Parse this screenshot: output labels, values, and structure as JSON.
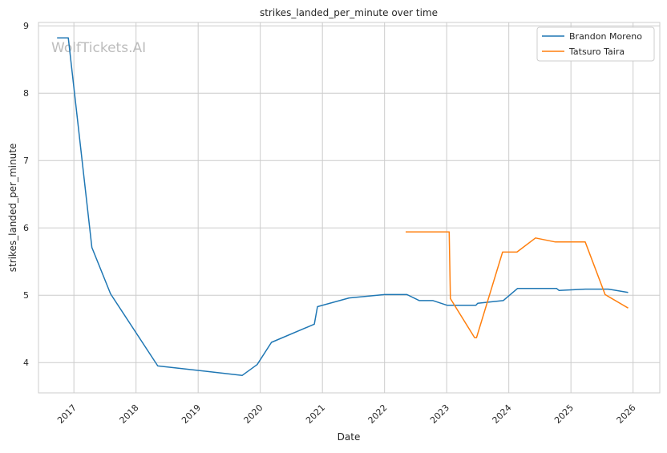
{
  "chart_data": {
    "type": "line",
    "title": "strikes_landed_per_minute over time",
    "xlabel": "Date",
    "ylabel": "strikes_landed_per_minute",
    "watermark": "WolfTickets.AI",
    "xlim": [
      2016.43,
      2026.43
    ],
    "ylim": [
      3.55,
      9.05
    ],
    "x_ticks": [
      2017,
      2018,
      2019,
      2020,
      2021,
      2022,
      2023,
      2024,
      2025,
      2026
    ],
    "x_tick_labels": [
      "2017",
      "2018",
      "2019",
      "2020",
      "2021",
      "2022",
      "2023",
      "2024",
      "2025",
      "2026"
    ],
    "y_ticks": [
      4,
      5,
      6,
      7,
      8,
      9
    ],
    "y_tick_labels": [
      "4",
      "5",
      "6",
      "7",
      "8",
      "9"
    ],
    "grid": true,
    "legend_position": "top-right",
    "series": [
      {
        "name": "Brandon Moreno",
        "color": "#1f77b4",
        "x": [
          2016.73,
          2016.91,
          2017.29,
          2017.59,
          2018.35,
          2019.71,
          2019.95,
          2020.18,
          2020.87,
          2020.92,
          2021.43,
          2022.0,
          2022.36,
          2022.56,
          2022.78,
          2023.01,
          2023.47,
          2023.5,
          2023.91,
          2024.14,
          2024.77,
          2024.81,
          2025.23,
          2025.6,
          2025.92
        ],
        "y": [
          8.82,
          8.82,
          5.71,
          5.02,
          3.95,
          3.81,
          3.97,
          4.3,
          4.57,
          4.83,
          4.96,
          5.01,
          5.01,
          4.92,
          4.92,
          4.85,
          4.85,
          4.88,
          4.92,
          5.1,
          5.1,
          5.07,
          5.09,
          5.09,
          5.04
        ]
      },
      {
        "name": "Tatsuro Taira",
        "color": "#ff7f0e",
        "x": [
          2022.34,
          2023.04,
          2023.06,
          2023.45,
          2023.48,
          2023.9,
          2024.13,
          2024.43,
          2024.75,
          2025.23,
          2025.55,
          2025.92
        ],
        "y": [
          5.94,
          5.94,
          4.95,
          4.37,
          4.37,
          5.64,
          5.64,
          5.85,
          5.79,
          5.79,
          5.01,
          4.81
        ]
      }
    ]
  }
}
